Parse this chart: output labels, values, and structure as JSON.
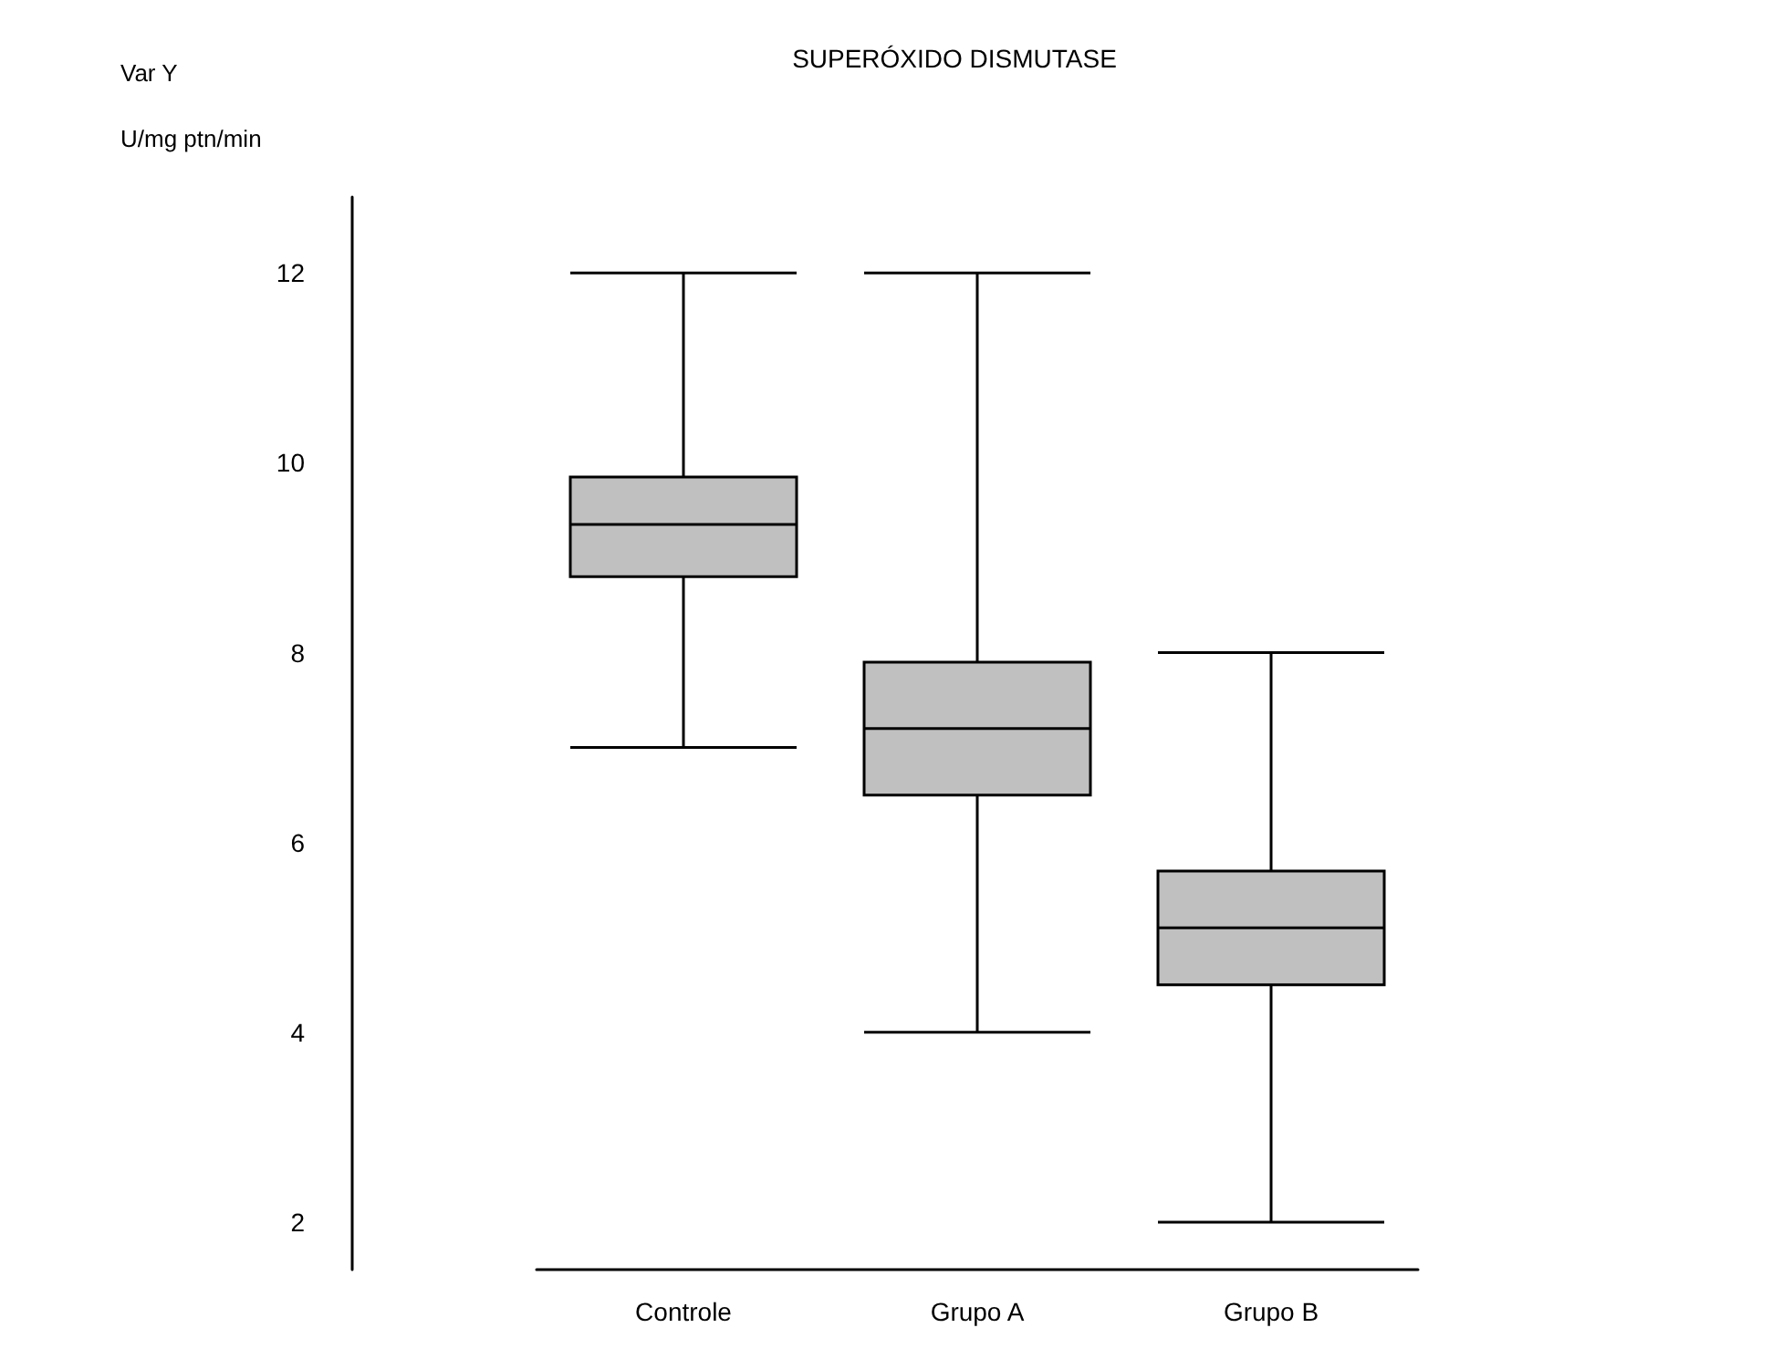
{
  "chart_data": {
    "type": "box",
    "title": "SUPERÓXIDO DISMUTASE",
    "ylabel": "Var Y\nU/mg ptn/min",
    "categories": [
      "Controle",
      "Grupo A",
      "Grupo B"
    ],
    "boxes": [
      {
        "low": 7,
        "q1": 8.8,
        "median": 9.35,
        "q3": 9.85,
        "high": 12
      },
      {
        "low": 4,
        "q1": 6.5,
        "median": 7.2,
        "q3": 7.9,
        "high": 12
      },
      {
        "low": 2,
        "q1": 4.5,
        "median": 5.1,
        "q3": 5.7,
        "high": 8
      }
    ],
    "color": "#c0c0c0",
    "ylim": [
      1.5,
      12.8
    ],
    "yticks": [
      2,
      4,
      6,
      8,
      10,
      12
    ],
    "grid": false
  }
}
